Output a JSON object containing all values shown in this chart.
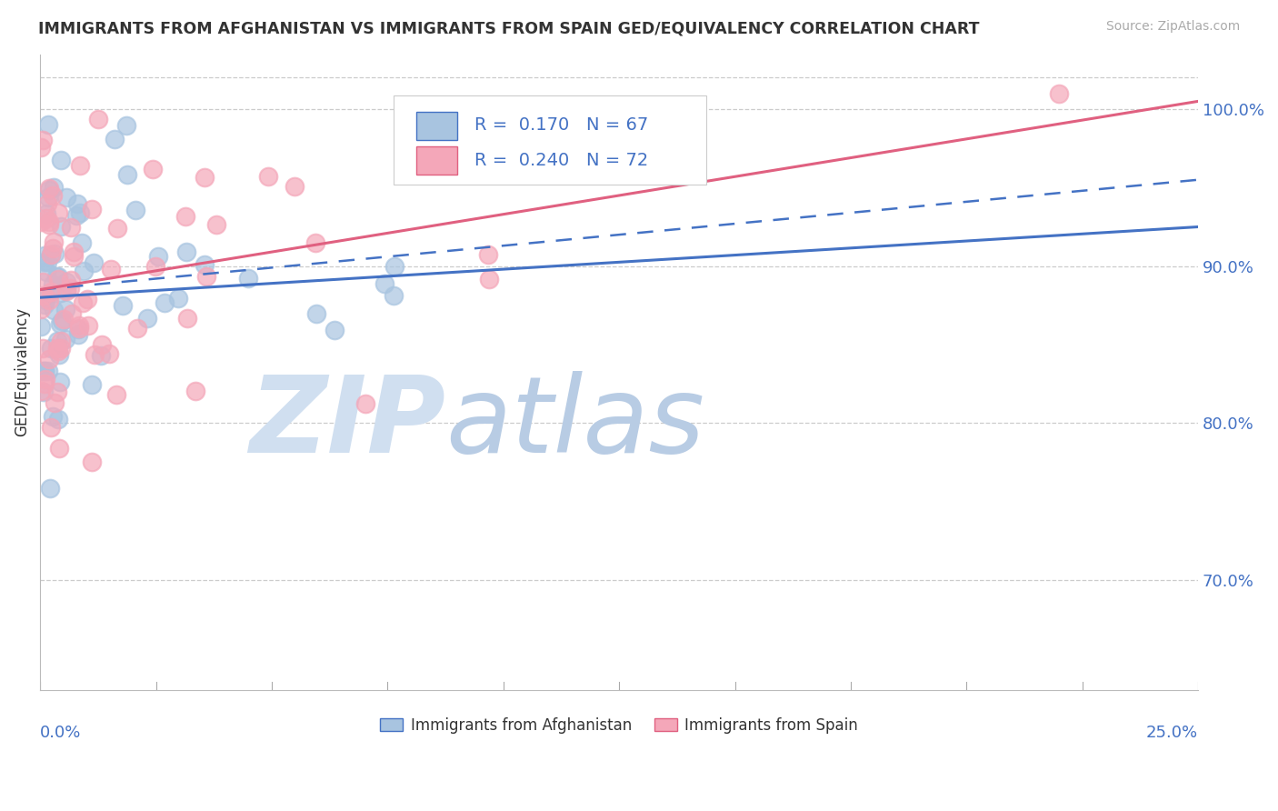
{
  "title": "IMMIGRANTS FROM AFGHANISTAN VS IMMIGRANTS FROM SPAIN GED/EQUIVALENCY CORRELATION CHART",
  "source": "Source: ZipAtlas.com",
  "ylabel": "GED/Equivalency",
  "xmin": 0.0,
  "xmax": 25.0,
  "ymin": 63.0,
  "ymax": 103.5,
  "ytick_positions": [
    70.0,
    80.0,
    90.0,
    100.0
  ],
  "ytick_labels": [
    "70.0%",
    "80.0%",
    "90.0%",
    "100.0%"
  ],
  "legend_r1": "R =  0.170   N = 67",
  "legend_r2": "R =  0.240   N = 72",
  "afghanistan_color": "#a8c4e0",
  "spain_color": "#f4a7b9",
  "afghanistan_line_color": "#4472c4",
  "spain_line_color": "#e06080",
  "watermark_color": "#d0dff0",
  "watermark_color2": "#b8cce4",
  "bottom_legend_afghanistan": "Immigrants from Afghanistan",
  "bottom_legend_spain": "Immigrants from Spain",
  "afg_line_x0": 0.0,
  "afg_line_x1": 25.0,
  "afg_line_y0": 88.0,
  "afg_line_y1": 92.5,
  "afg_dash_y0": 88.5,
  "afg_dash_y1": 95.5,
  "spa_line_x0": 0.0,
  "spa_line_x1": 25.0,
  "spa_line_y0": 88.5,
  "spa_line_y1": 100.5
}
